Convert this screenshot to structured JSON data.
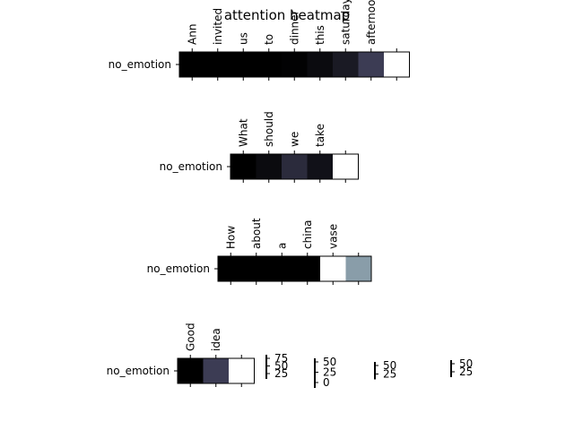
{
  "chart_data": {
    "type": "heatmap",
    "title": "attention heatmap",
    "colormap": "bone",
    "panels": [
      {
        "row_label": "no_emotion",
        "tokens": [
          "Ann",
          "invited",
          "us",
          "to",
          "dinner",
          "this",
          "saturday",
          "afternoon",
          ""
        ],
        "values": [
          0.0,
          0.0,
          0.0,
          0.0,
          0.01,
          0.05,
          0.12,
          0.28,
          1.0
        ]
      },
      {
        "row_label": "no_emotion",
        "tokens": [
          "What",
          "should",
          "we",
          "take",
          ""
        ],
        "values": [
          0.0,
          0.05,
          0.2,
          0.08,
          1.0
        ]
      },
      {
        "row_label": "no_emotion",
        "tokens": [
          "How",
          "about",
          "a",
          "china",
          "vase",
          ""
        ],
        "values": [
          0.0,
          0.0,
          0.0,
          0.0,
          1.0,
          0.62
        ]
      },
      {
        "row_label": "no_emotion",
        "tokens": [
          "Good",
          "idea",
          ""
        ],
        "values": [
          0.0,
          0.28,
          1.0
        ]
      }
    ],
    "colorbars": [
      {
        "ticks": [
          "75",
          "50",
          "25"
        ]
      },
      {
        "ticks": [
          "50",
          "25",
          "0"
        ]
      },
      {
        "ticks": [
          "50",
          "25"
        ]
      },
      {
        "ticks": [
          "50",
          "25"
        ]
      }
    ]
  }
}
